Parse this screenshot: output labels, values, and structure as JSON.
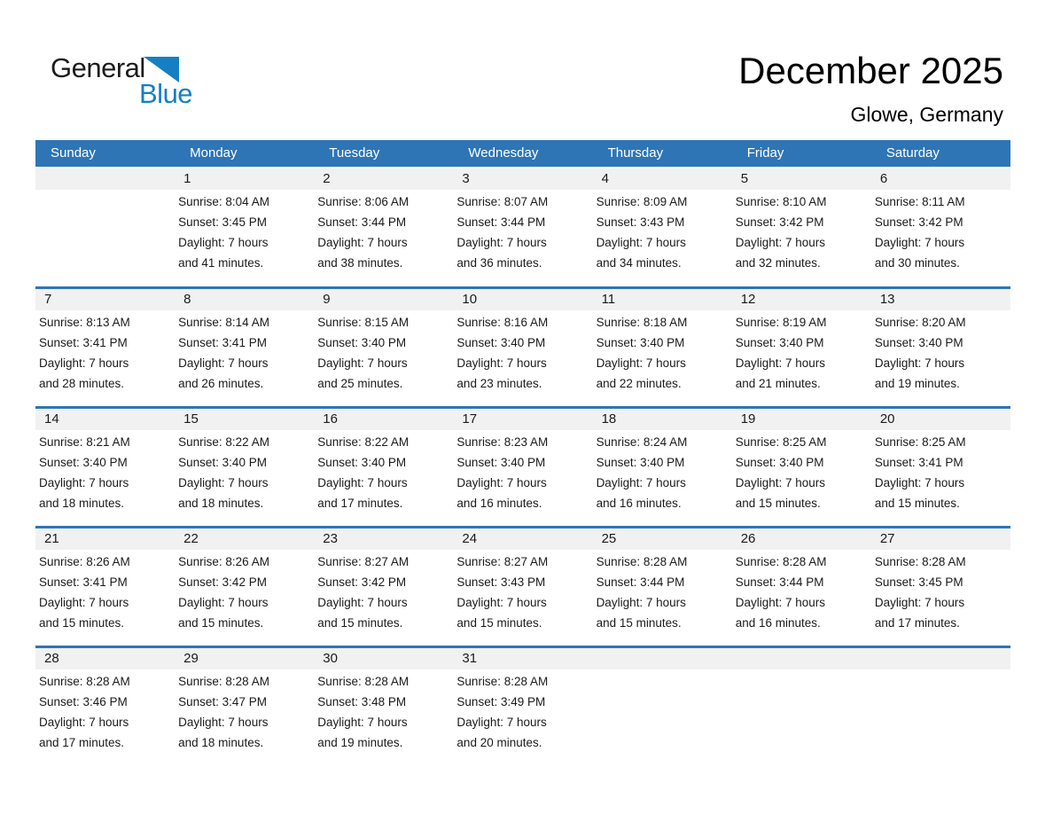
{
  "logo": {
    "general": "General",
    "blue": "Blue"
  },
  "header": {
    "title": "December 2025",
    "location": "Glowe, Germany"
  },
  "colors": {
    "header_blue": "#2E75B6",
    "row_separator_blue": "#2E75B6",
    "day_number_strip_gray": "#F1F1F1",
    "logo_blue": "#157FC4",
    "body_text": "#1A1A1A"
  },
  "calendar": {
    "weekdays": [
      "Sunday",
      "Monday",
      "Tuesday",
      "Wednesday",
      "Thursday",
      "Friday",
      "Saturday"
    ],
    "weeks": [
      [
        {
          "day": "",
          "lines": []
        },
        {
          "day": "1",
          "lines": [
            "Sunrise: 8:04 AM",
            "Sunset: 3:45 PM",
            "Daylight: 7 hours",
            "and 41 minutes."
          ]
        },
        {
          "day": "2",
          "lines": [
            "Sunrise: 8:06 AM",
            "Sunset: 3:44 PM",
            "Daylight: 7 hours",
            "and 38 minutes."
          ]
        },
        {
          "day": "3",
          "lines": [
            "Sunrise: 8:07 AM",
            "Sunset: 3:44 PM",
            "Daylight: 7 hours",
            "and 36 minutes."
          ]
        },
        {
          "day": "4",
          "lines": [
            "Sunrise: 8:09 AM",
            "Sunset: 3:43 PM",
            "Daylight: 7 hours",
            "and 34 minutes."
          ]
        },
        {
          "day": "5",
          "lines": [
            "Sunrise: 8:10 AM",
            "Sunset: 3:42 PM",
            "Daylight: 7 hours",
            "and 32 minutes."
          ]
        },
        {
          "day": "6",
          "lines": [
            "Sunrise: 8:11 AM",
            "Sunset: 3:42 PM",
            "Daylight: 7 hours",
            "and 30 minutes."
          ]
        }
      ],
      [
        {
          "day": "7",
          "lines": [
            "Sunrise: 8:13 AM",
            "Sunset: 3:41 PM",
            "Daylight: 7 hours",
            "and 28 minutes."
          ]
        },
        {
          "day": "8",
          "lines": [
            "Sunrise: 8:14 AM",
            "Sunset: 3:41 PM",
            "Daylight: 7 hours",
            "and 26 minutes."
          ]
        },
        {
          "day": "9",
          "lines": [
            "Sunrise: 8:15 AM",
            "Sunset: 3:40 PM",
            "Daylight: 7 hours",
            "and 25 minutes."
          ]
        },
        {
          "day": "10",
          "lines": [
            "Sunrise: 8:16 AM",
            "Sunset: 3:40 PM",
            "Daylight: 7 hours",
            "and 23 minutes."
          ]
        },
        {
          "day": "11",
          "lines": [
            "Sunrise: 8:18 AM",
            "Sunset: 3:40 PM",
            "Daylight: 7 hours",
            "and 22 minutes."
          ]
        },
        {
          "day": "12",
          "lines": [
            "Sunrise: 8:19 AM",
            "Sunset: 3:40 PM",
            "Daylight: 7 hours",
            "and 21 minutes."
          ]
        },
        {
          "day": "13",
          "lines": [
            "Sunrise: 8:20 AM",
            "Sunset: 3:40 PM",
            "Daylight: 7 hours",
            "and 19 minutes."
          ]
        }
      ],
      [
        {
          "day": "14",
          "lines": [
            "Sunrise: 8:21 AM",
            "Sunset: 3:40 PM",
            "Daylight: 7 hours",
            "and 18 minutes."
          ]
        },
        {
          "day": "15",
          "lines": [
            "Sunrise: 8:22 AM",
            "Sunset: 3:40 PM",
            "Daylight: 7 hours",
            "and 18 minutes."
          ]
        },
        {
          "day": "16",
          "lines": [
            "Sunrise: 8:22 AM",
            "Sunset: 3:40 PM",
            "Daylight: 7 hours",
            "and 17 minutes."
          ]
        },
        {
          "day": "17",
          "lines": [
            "Sunrise: 8:23 AM",
            "Sunset: 3:40 PM",
            "Daylight: 7 hours",
            "and 16 minutes."
          ]
        },
        {
          "day": "18",
          "lines": [
            "Sunrise: 8:24 AM",
            "Sunset: 3:40 PM",
            "Daylight: 7 hours",
            "and 16 minutes."
          ]
        },
        {
          "day": "19",
          "lines": [
            "Sunrise: 8:25 AM",
            "Sunset: 3:40 PM",
            "Daylight: 7 hours",
            "and 15 minutes."
          ]
        },
        {
          "day": "20",
          "lines": [
            "Sunrise: 8:25 AM",
            "Sunset: 3:41 PM",
            "Daylight: 7 hours",
            "and 15 minutes."
          ]
        }
      ],
      [
        {
          "day": "21",
          "lines": [
            "Sunrise: 8:26 AM",
            "Sunset: 3:41 PM",
            "Daylight: 7 hours",
            "and 15 minutes."
          ]
        },
        {
          "day": "22",
          "lines": [
            "Sunrise: 8:26 AM",
            "Sunset: 3:42 PM",
            "Daylight: 7 hours",
            "and 15 minutes."
          ]
        },
        {
          "day": "23",
          "lines": [
            "Sunrise: 8:27 AM",
            "Sunset: 3:42 PM",
            "Daylight: 7 hours",
            "and 15 minutes."
          ]
        },
        {
          "day": "24",
          "lines": [
            "Sunrise: 8:27 AM",
            "Sunset: 3:43 PM",
            "Daylight: 7 hours",
            "and 15 minutes."
          ]
        },
        {
          "day": "25",
          "lines": [
            "Sunrise: 8:28 AM",
            "Sunset: 3:44 PM",
            "Daylight: 7 hours",
            "and 15 minutes."
          ]
        },
        {
          "day": "26",
          "lines": [
            "Sunrise: 8:28 AM",
            "Sunset: 3:44 PM",
            "Daylight: 7 hours",
            "and 16 minutes."
          ]
        },
        {
          "day": "27",
          "lines": [
            "Sunrise: 8:28 AM",
            "Sunset: 3:45 PM",
            "Daylight: 7 hours",
            "and 17 minutes."
          ]
        }
      ],
      [
        {
          "day": "28",
          "lines": [
            "Sunrise: 8:28 AM",
            "Sunset: 3:46 PM",
            "Daylight: 7 hours",
            "and 17 minutes."
          ]
        },
        {
          "day": "29",
          "lines": [
            "Sunrise: 8:28 AM",
            "Sunset: 3:47 PM",
            "Daylight: 7 hours",
            "and 18 minutes."
          ]
        },
        {
          "day": "30",
          "lines": [
            "Sunrise: 8:28 AM",
            "Sunset: 3:48 PM",
            "Daylight: 7 hours",
            "and 19 minutes."
          ]
        },
        {
          "day": "31",
          "lines": [
            "Sunrise: 8:28 AM",
            "Sunset: 3:49 PM",
            "Daylight: 7 hours",
            "and 20 minutes."
          ]
        },
        {
          "day": "",
          "lines": []
        },
        {
          "day": "",
          "lines": []
        },
        {
          "day": "",
          "lines": []
        }
      ]
    ]
  }
}
